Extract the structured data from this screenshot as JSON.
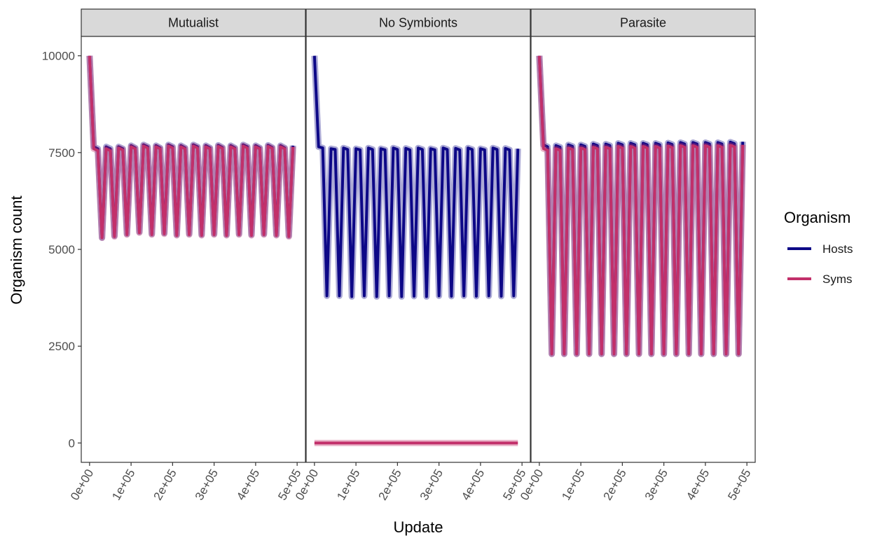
{
  "chart_data": {
    "type": "line",
    "xlabel": "Update",
    "ylabel": "Organism count",
    "xlim": [
      -20000,
      520000
    ],
    "ylim": [
      -500,
      10500
    ],
    "x_ticks": [
      0,
      100000,
      200000,
      300000,
      400000,
      500000
    ],
    "x_tick_labels": [
      "0e+00",
      "1e+05",
      "2e+05",
      "3e+05",
      "4e+05",
      "5e+05"
    ],
    "y_ticks": [
      0,
      2500,
      5000,
      7500,
      10000
    ],
    "y_tick_labels": [
      "0",
      "2500",
      "5000",
      "7500",
      "10000"
    ],
    "legend": {
      "title": "Organism",
      "position": "right",
      "entries": [
        {
          "label": "Hosts",
          "color": "#0d0887"
        },
        {
          "label": "Syms",
          "color": "#c2306a"
        }
      ]
    },
    "facets": [
      {
        "label": "Mutualist",
        "series": [
          {
            "name": "Hosts",
            "color": "#0d0887",
            "x": [
              0,
              10000,
              20000,
              30000,
              40000,
              50000,
              60000,
              70000,
              80000,
              90000,
              100000,
              110000,
              120000,
              130000,
              140000,
              150000,
              160000,
              170000,
              180000,
              190000,
              200000,
              210000,
              220000,
              230000,
              240000,
              250000,
              260000,
              270000,
              280000,
              290000,
              300000,
              310000,
              320000,
              330000,
              340000,
              350000,
              360000,
              370000,
              380000,
              390000,
              400000,
              410000,
              420000,
              430000,
              440000,
              450000,
              460000,
              470000,
              480000,
              490000
            ],
            "y": [
              10000,
              7650,
              7600,
              5300,
              7650,
              7600,
              5350,
              7650,
              7600,
              5400,
              7680,
              7620,
              5450,
              7700,
              7650,
              5400,
              7680,
              7620,
              5420,
              7700,
              7650,
              5380,
              7680,
              7620,
              5400,
              7700,
              7650,
              5380,
              7680,
              7620,
              5400,
              7690,
              7630,
              5380,
              7680,
              7620,
              5400,
              7700,
              7650,
              5380,
              7680,
              7620,
              5400,
              7690,
              7630,
              5380,
              7680,
              7620,
              5350,
              7680
            ]
          },
          {
            "name": "Syms",
            "color": "#c2306a",
            "x": [
              0,
              10000,
              20000,
              30000,
              40000,
              50000,
              60000,
              70000,
              80000,
              90000,
              100000,
              110000,
              120000,
              130000,
              140000,
              150000,
              160000,
              170000,
              180000,
              190000,
              200000,
              210000,
              220000,
              230000,
              240000,
              250000,
              260000,
              270000,
              280000,
              290000,
              300000,
              310000,
              320000,
              330000,
              340000,
              350000,
              360000,
              370000,
              380000,
              390000,
              400000,
              410000,
              420000,
              430000,
              440000,
              450000,
              460000,
              470000,
              480000,
              490000
            ],
            "y": [
              10000,
              7600,
              7550,
              5300,
              7600,
              7550,
              5330,
              7620,
              7570,
              5380,
              7650,
              7600,
              5430,
              7670,
              7620,
              5380,
              7650,
              7600,
              5400,
              7670,
              7620,
              5360,
              7650,
              7600,
              5380,
              7670,
              7620,
              5360,
              7650,
              7600,
              5380,
              7660,
              7610,
              5360,
              7650,
              7600,
              5380,
              7670,
              7620,
              5360,
              7650,
              7600,
              5380,
              7660,
              7610,
              5360,
              7650,
              7600,
              5330,
              7650
            ]
          }
        ]
      },
      {
        "label": "No Symbionts",
        "series": [
          {
            "name": "Hosts",
            "color": "#0d0887",
            "x": [
              0,
              10000,
              20000,
              30000,
              40000,
              50000,
              60000,
              70000,
              80000,
              90000,
              100000,
              110000,
              120000,
              130000,
              140000,
              150000,
              160000,
              170000,
              180000,
              190000,
              200000,
              210000,
              220000,
              230000,
              240000,
              250000,
              260000,
              270000,
              280000,
              290000,
              300000,
              310000,
              320000,
              330000,
              340000,
              350000,
              360000,
              370000,
              380000,
              390000,
              400000,
              410000,
              420000,
              430000,
              440000,
              450000,
              460000,
              470000,
              480000,
              490000
            ],
            "y": [
              10000,
              7650,
              7620,
              3800,
              7600,
              7580,
              3800,
              7620,
              7580,
              3780,
              7600,
              7570,
              3800,
              7620,
              7580,
              3780,
              7600,
              7570,
              3800,
              7620,
              7580,
              3780,
              7610,
              7570,
              3790,
              7620,
              7580,
              3780,
              7600,
              7570,
              3800,
              7620,
              7580,
              3790,
              7610,
              7570,
              3800,
              7620,
              7580,
              3790,
              7600,
              7570,
              3800,
              7620,
              7580,
              3790,
              7610,
              7570,
              3800,
              7600
            ]
          },
          {
            "name": "Syms",
            "color": "#c2306a",
            "x": [
              0,
              100000,
              200000,
              300000,
              400000,
              490000
            ],
            "y": [
              0,
              0,
              0,
              0,
              0,
              0
            ]
          }
        ]
      },
      {
        "label": "Parasite",
        "series": [
          {
            "name": "Hosts",
            "color": "#0d0887",
            "x": [
              0,
              10000,
              20000,
              30000,
              40000,
              50000,
              60000,
              70000,
              80000,
              90000,
              100000,
              110000,
              120000,
              130000,
              140000,
              150000,
              160000,
              170000,
              180000,
              190000,
              200000,
              210000,
              220000,
              230000,
              240000,
              250000,
              260000,
              270000,
              280000,
              290000,
              300000,
              310000,
              320000,
              330000,
              340000,
              350000,
              360000,
              370000,
              380000,
              390000,
              400000,
              410000,
              420000,
              430000,
              440000,
              450000,
              460000,
              470000,
              480000,
              490000
            ],
            "y": [
              10000,
              7700,
              7650,
              2300,
              7680,
              7640,
              2300,
              7700,
              7660,
              2300,
              7700,
              7660,
              2300,
              7720,
              7680,
              2300,
              7720,
              7680,
              2300,
              7740,
              7700,
              2300,
              7740,
              7700,
              2300,
              7740,
              7700,
              2300,
              7740,
              7700,
              2300,
              7750,
              7710,
              2300,
              7760,
              7720,
              2300,
              7760,
              7720,
              2300,
              7760,
              7720,
              2300,
              7760,
              7720,
              2300,
              7770,
              7730,
              2300,
              7780
            ]
          },
          {
            "name": "Syms",
            "color": "#c2306a",
            "x": [
              0,
              10000,
              20000,
              30000,
              40000,
              50000,
              60000,
              70000,
              80000,
              90000,
              100000,
              110000,
              120000,
              130000,
              140000,
              150000,
              160000,
              170000,
              180000,
              190000,
              200000,
              210000,
              220000,
              230000,
              240000,
              250000,
              260000,
              270000,
              280000,
              290000,
              300000,
              310000,
              320000,
              330000,
              340000,
              350000,
              360000,
              370000,
              380000,
              390000,
              400000,
              410000,
              420000,
              430000,
              440000,
              450000,
              460000,
              470000,
              480000,
              490000
            ],
            "y": [
              10000,
              7600,
              7560,
              2300,
              7600,
              7560,
              2300,
              7620,
              7580,
              2300,
              7620,
              7580,
              2300,
              7640,
              7600,
              2300,
              7640,
              7600,
              2300,
              7660,
              7620,
              2300,
              7660,
              7620,
              2300,
              7660,
              7620,
              2300,
              7660,
              7620,
              2300,
              7670,
              7630,
              2300,
              7680,
              7640,
              2300,
              7680,
              7640,
              2300,
              7680,
              7640,
              2300,
              7680,
              7640,
              2300,
              7690,
              7650,
              2300,
              7700
            ]
          }
        ]
      }
    ]
  }
}
